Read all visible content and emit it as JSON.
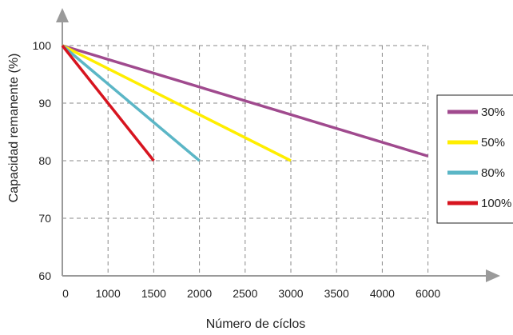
{
  "chart_data": {
    "type": "line",
    "title": "",
    "xlabel": "Número de cíclos",
    "ylabel": "Capacidad remanente (%)",
    "x_ticks": [
      "0",
      "1000",
      "1500",
      "2000",
      "2500",
      "3000",
      "3500",
      "4000",
      "6000"
    ],
    "y_ticks": [
      "60",
      "70",
      "80",
      "90",
      "100"
    ],
    "ylim": [
      60,
      100
    ],
    "grid": true,
    "legend_position": "right",
    "series": [
      {
        "name": "30%",
        "color": "#a04a8e",
        "points": [
          [
            "0",
            100
          ],
          [
            "6000",
            80.8
          ]
        ]
      },
      {
        "name": "50%",
        "color": "#ffee00",
        "points": [
          [
            "0",
            100
          ],
          [
            "3000",
            80
          ]
        ]
      },
      {
        "name": "80%",
        "color": "#5bb6c6",
        "points": [
          [
            "0",
            100
          ],
          [
            "2000",
            80
          ]
        ]
      },
      {
        "name": "100%",
        "color": "#d7141f",
        "points": [
          [
            "0",
            100
          ],
          [
            "1500",
            80
          ]
        ]
      }
    ]
  }
}
